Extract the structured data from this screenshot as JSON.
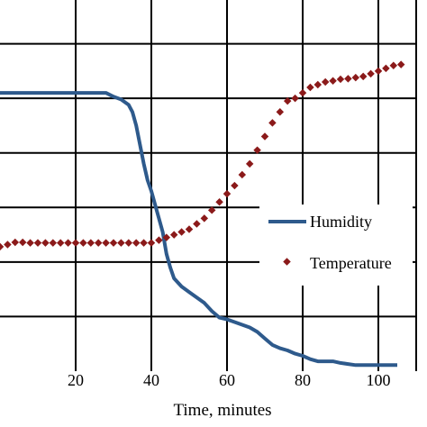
{
  "chart_data": {
    "type": "line",
    "xlabel": "Time, minutes",
    "ylabel": "",
    "title": "",
    "xlim": [
      0,
      110
    ],
    "ylim": [
      0,
      7
    ],
    "x_ticks": [
      20,
      40,
      60,
      80,
      100
    ],
    "x_tick_labels": [
      "20",
      "40",
      "60",
      "80",
      "100"
    ],
    "y_gridlines": [
      1,
      2,
      3,
      4,
      5,
      6,
      7
    ],
    "grid": true,
    "legend": {
      "placement": "right"
    },
    "series": [
      {
        "name": "Humidity",
        "style": "line",
        "color": "#2e5a8c",
        "x": [
          0,
          10,
          20,
          26,
          28,
          30,
          32,
          34,
          35,
          36,
          37,
          38,
          39,
          40,
          41,
          42,
          43,
          44,
          45,
          46,
          48,
          50,
          52,
          54,
          56,
          58,
          60,
          62,
          64,
          66,
          68,
          70,
          72,
          74,
          76,
          78,
          80,
          82,
          84,
          86,
          88,
          90,
          92,
          94,
          96,
          100,
          105
        ],
        "y": [
          5.1,
          5.1,
          5.1,
          5.1,
          5.1,
          5.03,
          4.98,
          4.88,
          4.75,
          4.5,
          4.15,
          3.8,
          3.5,
          3.3,
          3.05,
          2.8,
          2.55,
          2.15,
          1.9,
          1.7,
          1.55,
          1.45,
          1.35,
          1.25,
          1.1,
          0.98,
          0.95,
          0.9,
          0.85,
          0.8,
          0.72,
          0.6,
          0.48,
          0.42,
          0.38,
          0.32,
          0.28,
          0.22,
          0.18,
          0.18,
          0.18,
          0.15,
          0.13,
          0.11,
          0.11,
          0.11,
          0.11
        ]
      },
      {
        "name": "Temperature",
        "style": "markers",
        "marker": "diamond",
        "color": "#8b1a1a",
        "x": [
          0,
          2,
          4,
          6,
          8,
          10,
          12,
          14,
          16,
          18,
          20,
          22,
          24,
          26,
          28,
          30,
          32,
          34,
          36,
          38,
          40,
          42,
          44,
          46,
          48,
          50,
          52,
          54,
          56,
          58,
          60,
          62,
          64,
          66,
          68,
          70,
          72,
          74,
          76,
          78,
          80,
          82,
          84,
          86,
          88,
          90,
          92,
          94,
          96,
          98,
          100,
          102,
          104,
          106
        ],
        "y": [
          2.28,
          2.32,
          2.36,
          2.36,
          2.35,
          2.35,
          2.35,
          2.35,
          2.35,
          2.35,
          2.35,
          2.35,
          2.35,
          2.35,
          2.35,
          2.35,
          2.35,
          2.35,
          2.35,
          2.35,
          2.35,
          2.4,
          2.45,
          2.5,
          2.55,
          2.6,
          2.7,
          2.8,
          2.95,
          3.1,
          3.25,
          3.4,
          3.6,
          3.8,
          4.05,
          4.3,
          4.55,
          4.75,
          4.95,
          5.0,
          5.1,
          5.2,
          5.25,
          5.3,
          5.32,
          5.35,
          5.36,
          5.38,
          5.4,
          5.45,
          5.5,
          5.55,
          5.6,
          5.62
        ]
      }
    ]
  }
}
